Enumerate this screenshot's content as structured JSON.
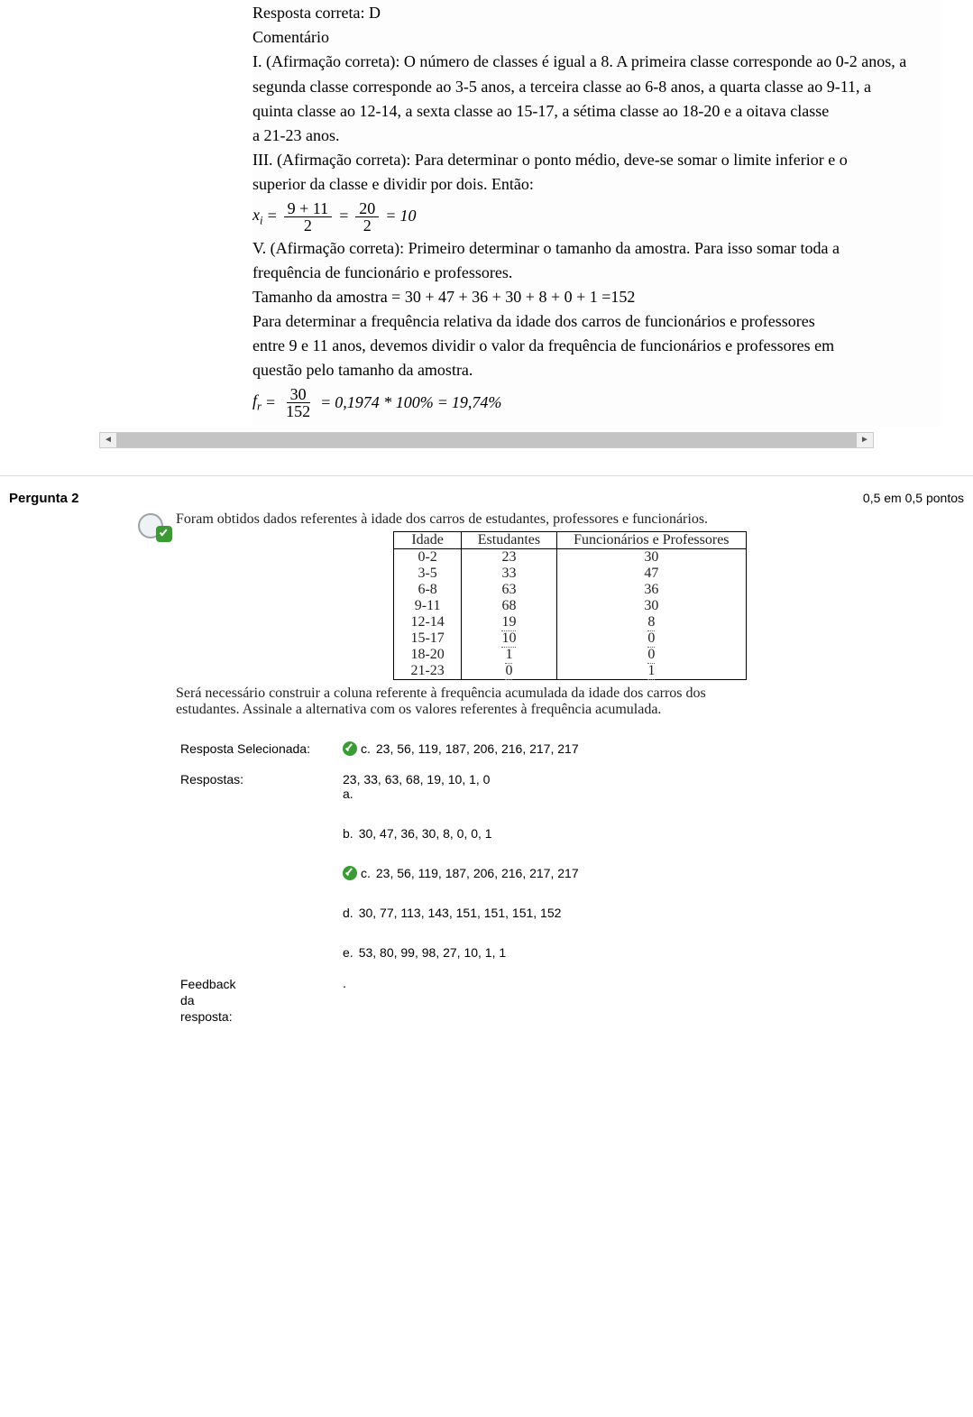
{
  "q1": {
    "answer_line": "Resposta correta: D",
    "comment_heading": "Comentário",
    "p1": "I. (Afirmação correta): O número de classes é igual a 8. A primeira classe corresponde ao 0-2 anos, a",
    "p2": "segunda classe corresponde ao 3-5 anos, a terceira classe ao 6-8 anos, a quarta classe ao 9-11, a",
    "p3": "quinta classe ao 12-14, a sexta classe ao 15-17, a sétima classe ao 18-20 e a oitava classe",
    "p4": "a 21-23 anos.",
    "p5": "III. (Afirmação correta): Para determinar o ponto médio, deve-se somar o limite inferior e o",
    "p6": "superior da classe e dividir por dois. Então:",
    "formula1": {
      "lhs_var": "x",
      "lhs_sub": "i",
      "num1": "9 + 11",
      "den1": "2",
      "num2": "20",
      "den2": "2",
      "result": "10"
    },
    "p7": "V. (Afirmação correta): Primeiro determinar o tamanho da amostra. Para isso somar toda a",
    "p8": "frequência de funcionário e professores.",
    "p9": "Tamanho da amostra = 30 + 47 + 36 + 30 + 8 + 0 + 1 =152",
    "p10": "Para determinar a frequência relativa da idade dos carros de funcionários e professores",
    "p11": "entre 9 e 11 anos, devemos dividir o valor da frequência de funcionários e professores em",
    "p12": "questão pelo tamanho da amostra.",
    "formula2": {
      "lhs_var": "f",
      "lhs_sub": "r",
      "num": "30",
      "den": "152",
      "mid": "0,1974 * 100%",
      "result": "19,74%"
    }
  },
  "q2": {
    "title": "Pergunta 2",
    "score": "0,5 em 0,5 pontos",
    "intro": "Foram obtidos dados referentes à idade dos carros de estudantes, professores e funcionários.",
    "table": {
      "headers": [
        "Idade",
        "Estudantes",
        "Funcionários e Professores"
      ],
      "rows": [
        [
          "0-2",
          "23",
          "30"
        ],
        [
          "3-5",
          "33",
          "47"
        ],
        [
          "6-8",
          "63",
          "36"
        ],
        [
          "9-11",
          "68",
          "30"
        ],
        [
          "12-14",
          "19",
          "8"
        ],
        [
          "15-17",
          "10",
          "0"
        ],
        [
          "18-20",
          "1",
          "0"
        ],
        [
          "21-23",
          "0",
          "1"
        ]
      ],
      "dotted_rows": [
        4,
        5,
        6,
        7
      ]
    },
    "after_table1": "Será necessário construir a coluna referente à frequência acumulada da idade dos carros dos",
    "after_table2": "estudantes. Assinale a alternativa com os valores referentes à frequência acumulada.",
    "selected_label": "Resposta Selecionada:",
    "answers_label": "Respostas:",
    "feedback_label": "Feedback da resposta:",
    "feedback_value": ".",
    "selected": {
      "letter": "c.",
      "text": "23, 56, 119, 187, 206, 216, 217, 217",
      "correct": true
    },
    "options": [
      {
        "letter": "a.",
        "text": "23, 33, 63, 68, 19, 10, 1, 0",
        "correct": false,
        "letter_below": true
      },
      {
        "letter": "b.",
        "text": "30, 47, 36, 30, 8, 0, 0, 1",
        "correct": false
      },
      {
        "letter": "c.",
        "text": "23, 56, 119, 187, 206, 216, 217, 217",
        "correct": true
      },
      {
        "letter": "d.",
        "text": "30, 77, 113, 143, 151, 151, 151, 152",
        "correct": false
      },
      {
        "letter": "e.",
        "text": "53, 80, 99, 98, 27, 10, 1, 1",
        "correct": false
      }
    ]
  }
}
